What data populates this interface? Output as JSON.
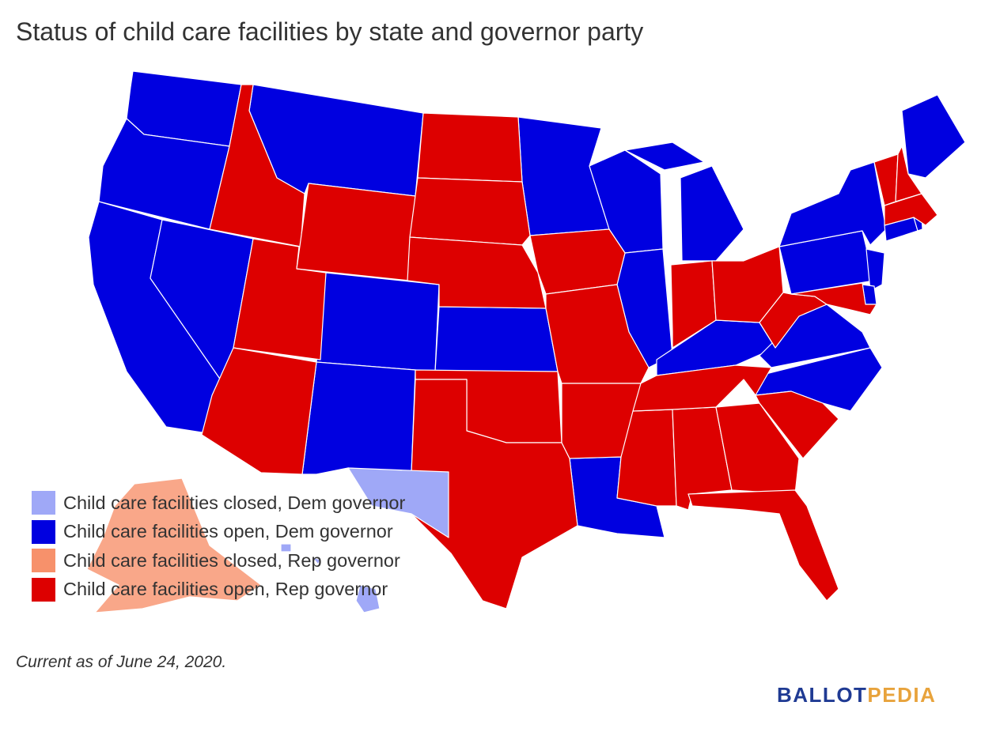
{
  "title": "Status of child care facilities by state and governor party",
  "legend": [
    {
      "label": "Child care facilities closed, Dem governor",
      "color": "#9fa8f7"
    },
    {
      "label": "Child care facilities open, Dem governor",
      "color": "#0000e0"
    },
    {
      "label": "Child care facilities closed, Rep governor",
      "color": "#f7916b"
    },
    {
      "label": "Child care facilities open, Rep governor",
      "color": "#dd0000"
    }
  ],
  "footnote": "Current as of June 24, 2020.",
  "logo": {
    "part1": "BALLOT",
    "part2": "PEDIA"
  },
  "colors": {
    "dem_closed": "#9fa8f7",
    "dem_open": "#0000e0",
    "rep_closed": "#f7916b",
    "rep_open": "#dd0000"
  },
  "map_data": {
    "dem_closed": [
      "Hawaii",
      "New Mexico (partial)"
    ],
    "dem_open": [
      "Washington",
      "Oregon",
      "California",
      "Nevada",
      "Montana",
      "Colorado",
      "New Mexico",
      "Minnesota",
      "Wisconsin",
      "Illinois",
      "Michigan",
      "Kansas",
      "Louisiana",
      "Kentucky",
      "Virginia",
      "North Carolina",
      "Pennsylvania",
      "New York",
      "New Jersey",
      "Delaware",
      "Connecticut",
      "Rhode Island",
      "Maine"
    ],
    "rep_closed": [
      "Alaska"
    ],
    "rep_open": [
      "Idaho",
      "Utah",
      "Arizona",
      "Wyoming",
      "North Dakota",
      "South Dakota",
      "Nebraska",
      "Oklahoma",
      "Texas",
      "Iowa",
      "Missouri",
      "Arkansas",
      "Mississippi",
      "Alabama",
      "Georgia",
      "Florida",
      "South Carolina",
      "Tennessee",
      "Indiana",
      "Ohio",
      "West Virginia",
      "Maryland",
      "Vermont",
      "New Hampshire",
      "Massachusetts"
    ]
  }
}
